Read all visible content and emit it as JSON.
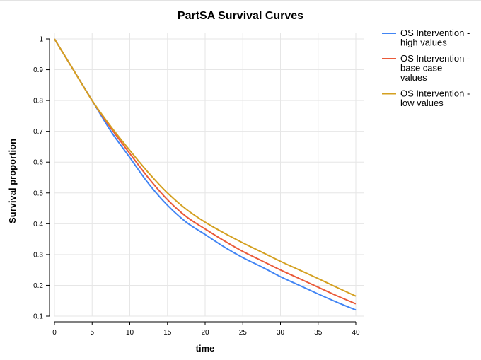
{
  "chart_data": {
    "type": "line",
    "title": "PartSA Survival Curves",
    "xlabel": "time",
    "ylabel": "Survival proportion",
    "xlim": [
      0,
      40
    ],
    "ylim": [
      0.1,
      1
    ],
    "xticks": [
      0,
      5,
      10,
      15,
      20,
      25,
      30,
      35,
      40
    ],
    "yticks": [
      0.1,
      0.2,
      0.3,
      0.4,
      0.5,
      0.6,
      0.7,
      0.8,
      0.9,
      1
    ],
    "grid": true,
    "legend_position": "right",
    "x": [
      0,
      2.5,
      5,
      7.5,
      10,
      12.5,
      15,
      17.5,
      20,
      22.5,
      25,
      27.5,
      30,
      32.5,
      35,
      37.5,
      40
    ],
    "series": [
      {
        "name": "OS Intervention - high values",
        "legend_lines": [
          "OS Intervention -",
          "high values"
        ],
        "color": "#4285f4",
        "values": [
          1.0,
          0.9,
          0.8,
          0.7,
          0.615,
          0.53,
          0.46,
          0.405,
          0.365,
          0.325,
          0.29,
          0.26,
          0.228,
          0.2,
          0.172,
          0.145,
          0.12
        ]
      },
      {
        "name": "OS Intervention - base case values",
        "legend_lines": [
          "OS Intervention -",
          "base case",
          "values"
        ],
        "color": "#ea5a3a",
        "values": [
          1.0,
          0.9,
          0.8,
          0.71,
          0.628,
          0.548,
          0.478,
          0.423,
          0.383,
          0.345,
          0.31,
          0.28,
          0.25,
          0.222,
          0.194,
          0.166,
          0.14
        ]
      },
      {
        "name": "OS Intervention - low values",
        "legend_lines": [
          "OS Intervention -",
          "low values"
        ],
        "color": "#d4a020",
        "values": [
          1.0,
          0.9,
          0.8,
          0.715,
          0.638,
          0.565,
          0.5,
          0.447,
          0.405,
          0.37,
          0.338,
          0.308,
          0.278,
          0.25,
          0.222,
          0.193,
          0.165
        ]
      }
    ]
  }
}
